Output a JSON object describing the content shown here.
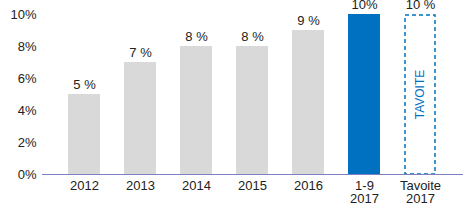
{
  "chart_data": {
    "type": "bar",
    "categories": [
      "2012",
      "2013",
      "2014",
      "2015",
      "2016",
      "1-9\n2017",
      "Tavoite\n2017"
    ],
    "series": [
      {
        "values": [
          5,
          7,
          8,
          8,
          9,
          10,
          null
        ],
        "colors": [
          "#d9d9d9",
          "#d9d9d9",
          "#d9d9d9",
          "#d9d9d9",
          "#d9d9d9",
          "#0070c0",
          null
        ],
        "value_labels": [
          "5 %",
          "7 %",
          "8 %",
          "8 %",
          "9 %",
          "10%",
          null
        ]
      },
      {
        "values": [
          null,
          null,
          null,
          null,
          null,
          null,
          10
        ],
        "color": "#0070c0",
        "line_style": "dashed",
        "value_labels": [
          null,
          null,
          null,
          null,
          null,
          null,
          "10 %"
        ]
      }
    ],
    "annotations": [
      {
        "text": "TAVOITE",
        "category": "Tavoite\n2017"
      }
    ],
    "ylim": [
      0,
      10
    ],
    "yticks": [
      {
        "value": 0,
        "label": "0%"
      },
      {
        "value": 2,
        "label": "2%"
      },
      {
        "value": 4,
        "label": "4%"
      },
      {
        "value": 6,
        "label": "6%"
      },
      {
        "value": 8,
        "label": "8%"
      },
      {
        "value": 10,
        "label": "10%"
      }
    ],
    "data_labels": true,
    "grid": false
  }
}
